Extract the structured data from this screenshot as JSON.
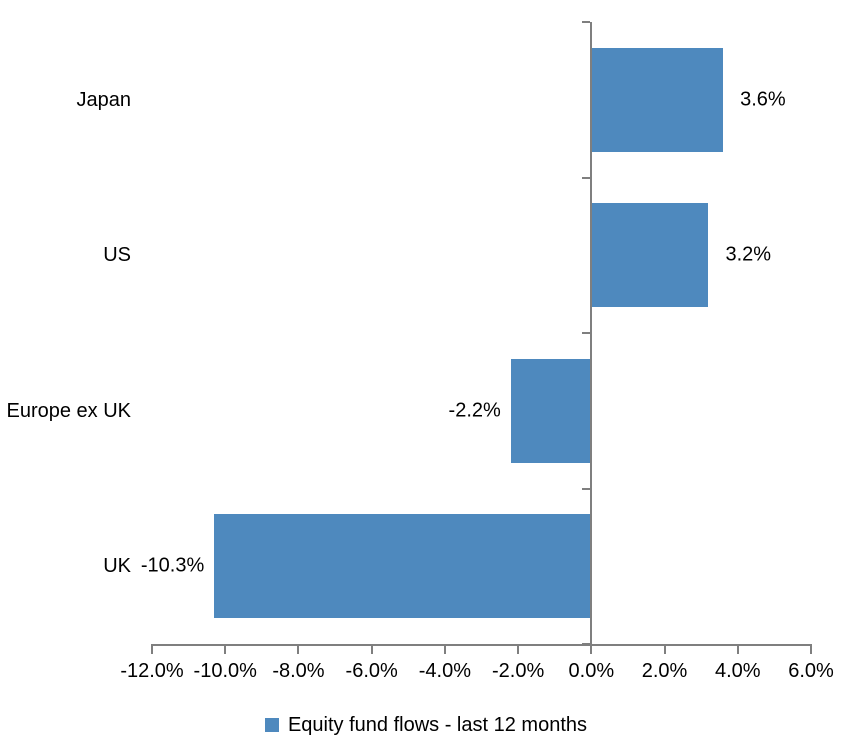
{
  "chart_data": {
    "type": "bar",
    "orientation": "horizontal",
    "categories": [
      "Japan",
      "US",
      "Europe ex UK",
      "UK"
    ],
    "series": [
      {
        "name": "Equity fund flows - last 12 months",
        "values": [
          3.6,
          3.2,
          -2.2,
          -10.3
        ],
        "data_labels": [
          "3.6%",
          "3.2%",
          "-2.2%",
          "-10.3%"
        ]
      }
    ],
    "xlim": [
      -12,
      6
    ],
    "x_tick_values": [
      -12,
      -10,
      -8,
      -6,
      -4,
      -2,
      0,
      2,
      4,
      6
    ],
    "x_tick_labels": [
      "-12.0%",
      "-10.0%",
      "-8.0%",
      "-6.0%",
      "-4.0%",
      "-2.0%",
      "0.0%",
      "2.0%",
      "4.0%",
      "6.0%"
    ],
    "grid": false,
    "legend_position": "bottom",
    "colors": {
      "bar": "#4E89BE",
      "axis": "#7F7F7F",
      "text": "#000000",
      "background": "#FFFFFF"
    }
  }
}
